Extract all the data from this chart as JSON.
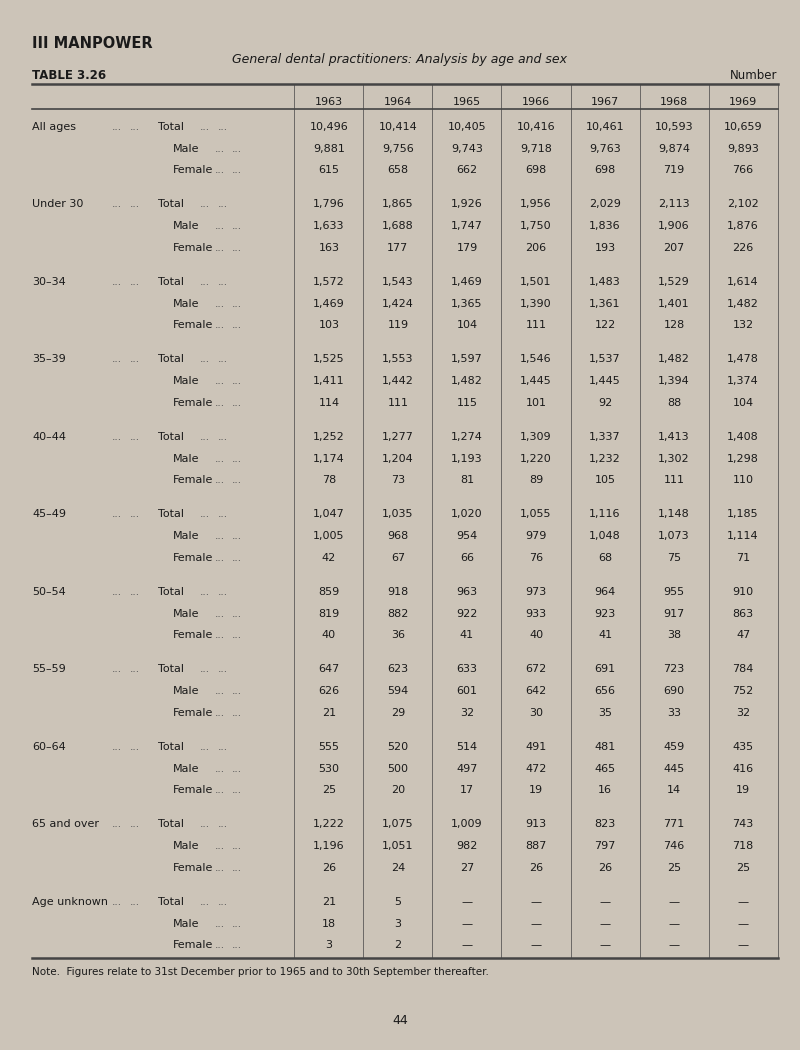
{
  "title_section": "III MANPOWER",
  "subtitle": "General dental practitioners: Analysis by age and sex",
  "table_label": "TABLE 3.26",
  "table_right_label": "Number",
  "note": "Note.  Figures relate to 31st December prior to 1965 and to 30th September thereafter.",
  "page_number": "44",
  "years": [
    "1963",
    "1964",
    "1965",
    "1966",
    "1967",
    "1968",
    "1969"
  ],
  "background_color": "#ccc4b8",
  "text_color": "#1a1a1a",
  "dots_color": "#555555",
  "line_color": "#444444",
  "row_groups": [
    {
      "age_label": "All ages",
      "rows": [
        {
          "label": "Total",
          "indent": 0,
          "values": [
            "10,496",
            "10,414",
            "10,405",
            "10,416",
            "10,461",
            "10,593",
            "10,659"
          ]
        },
        {
          "label": "Male",
          "indent": 1,
          "values": [
            "9,881",
            "9,756",
            "9,743",
            "9,718",
            "9,763",
            "9,874",
            "9,893"
          ]
        },
        {
          "label": "Female",
          "indent": 1,
          "values": [
            "615",
            "658",
            "662",
            "698",
            "698",
            "719",
            "766"
          ]
        }
      ]
    },
    {
      "age_label": "Under 30",
      "rows": [
        {
          "label": "Total",
          "indent": 0,
          "values": [
            "1,796",
            "1,865",
            "1,926",
            "1,956",
            "2,029",
            "2,113",
            "2,102"
          ]
        },
        {
          "label": "Male",
          "indent": 1,
          "values": [
            "1,633",
            "1,688",
            "1,747",
            "1,750",
            "1,836",
            "1,906",
            "1,876"
          ]
        },
        {
          "label": "Female",
          "indent": 1,
          "values": [
            "163",
            "177",
            "179",
            "206",
            "193",
            "207",
            "226"
          ]
        }
      ]
    },
    {
      "age_label": "30–34",
      "rows": [
        {
          "label": "Total",
          "indent": 0,
          "values": [
            "1,572",
            "1,543",
            "1,469",
            "1,501",
            "1,483",
            "1,529",
            "1,614"
          ]
        },
        {
          "label": "Male",
          "indent": 1,
          "values": [
            "1,469",
            "1,424",
            "1,365",
            "1,390",
            "1,361",
            "1,401",
            "1,482"
          ]
        },
        {
          "label": "Female",
          "indent": 1,
          "values": [
            "103",
            "119",
            "104",
            "111",
            "122",
            "128",
            "132"
          ]
        }
      ]
    },
    {
      "age_label": "35–39",
      "rows": [
        {
          "label": "Total",
          "indent": 0,
          "values": [
            "1,525",
            "1,553",
            "1,597",
            "1,546",
            "1,537",
            "1,482",
            "1,478"
          ]
        },
        {
          "label": "Male",
          "indent": 1,
          "values": [
            "1,411",
            "1,442",
            "1,482",
            "1,445",
            "1,445",
            "1,394",
            "1,374"
          ]
        },
        {
          "label": "Female",
          "indent": 1,
          "values": [
            "114",
            "111",
            "115",
            "101",
            "92",
            "88",
            "104"
          ]
        }
      ]
    },
    {
      "age_label": "40–44",
      "rows": [
        {
          "label": "Total",
          "indent": 0,
          "values": [
            "1,252",
            "1,277",
            "1,274",
            "1,309",
            "1,337",
            "1,413",
            "1,408"
          ]
        },
        {
          "label": "Male",
          "indent": 1,
          "values": [
            "1,174",
            "1,204",
            "1,193",
            "1,220",
            "1,232",
            "1,302",
            "1,298"
          ]
        },
        {
          "label": "Female",
          "indent": 1,
          "values": [
            "78",
            "73",
            "81",
            "89",
            "105",
            "111",
            "110"
          ]
        }
      ]
    },
    {
      "age_label": "45–49",
      "rows": [
        {
          "label": "Total",
          "indent": 0,
          "values": [
            "1,047",
            "1,035",
            "1,020",
            "1,055",
            "1,116",
            "1,148",
            "1,185"
          ]
        },
        {
          "label": "Male",
          "indent": 1,
          "values": [
            "1,005",
            "968",
            "954",
            "979",
            "1,048",
            "1,073",
            "1,114"
          ]
        },
        {
          "label": "Female",
          "indent": 1,
          "values": [
            "42",
            "67",
            "66",
            "76",
            "68",
            "75",
            "71"
          ]
        }
      ]
    },
    {
      "age_label": "50–54",
      "rows": [
        {
          "label": "Total",
          "indent": 0,
          "values": [
            "859",
            "918",
            "963",
            "973",
            "964",
            "955",
            "910"
          ]
        },
        {
          "label": "Male",
          "indent": 1,
          "values": [
            "819",
            "882",
            "922",
            "933",
            "923",
            "917",
            "863"
          ]
        },
        {
          "label": "Female",
          "indent": 1,
          "values": [
            "40",
            "36",
            "41",
            "40",
            "41",
            "38",
            "47"
          ]
        }
      ]
    },
    {
      "age_label": "55–59",
      "rows": [
        {
          "label": "Total",
          "indent": 0,
          "values": [
            "647",
            "623",
            "633",
            "672",
            "691",
            "723",
            "784"
          ]
        },
        {
          "label": "Male",
          "indent": 1,
          "values": [
            "626",
            "594",
            "601",
            "642",
            "656",
            "690",
            "752"
          ]
        },
        {
          "label": "Female",
          "indent": 1,
          "values": [
            "21",
            "29",
            "32",
            "30",
            "35",
            "33",
            "32"
          ]
        }
      ]
    },
    {
      "age_label": "60–64",
      "rows": [
        {
          "label": "Total",
          "indent": 0,
          "values": [
            "555",
            "520",
            "514",
            "491",
            "481",
            "459",
            "435"
          ]
        },
        {
          "label": "Male",
          "indent": 1,
          "values": [
            "530",
            "500",
            "497",
            "472",
            "465",
            "445",
            "416"
          ]
        },
        {
          "label": "Female",
          "indent": 1,
          "values": [
            "25",
            "20",
            "17",
            "19",
            "16",
            "14",
            "19"
          ]
        }
      ]
    },
    {
      "age_label": "65 and over",
      "rows": [
        {
          "label": "Total",
          "indent": 0,
          "values": [
            "1,222",
            "1,075",
            "1,009",
            "913",
            "823",
            "771",
            "743"
          ]
        },
        {
          "label": "Male",
          "indent": 1,
          "values": [
            "1,196",
            "1,051",
            "982",
            "887",
            "797",
            "746",
            "718"
          ]
        },
        {
          "label": "Female",
          "indent": 1,
          "values": [
            "26",
            "24",
            "27",
            "26",
            "26",
            "25",
            "25"
          ]
        }
      ]
    },
    {
      "age_label": "Age unknown",
      "rows": [
        {
          "label": "Total",
          "indent": 0,
          "values": [
            "21",
            "5",
            "—",
            "—",
            "—",
            "—",
            "—"
          ]
        },
        {
          "label": "Male",
          "indent": 1,
          "values": [
            "18",
            "3",
            "—",
            "—",
            "—",
            "—",
            "—"
          ]
        },
        {
          "label": "Female",
          "indent": 1,
          "values": [
            "3",
            "2",
            "—",
            "—",
            "—",
            "—",
            "—"
          ]
        }
      ]
    }
  ]
}
